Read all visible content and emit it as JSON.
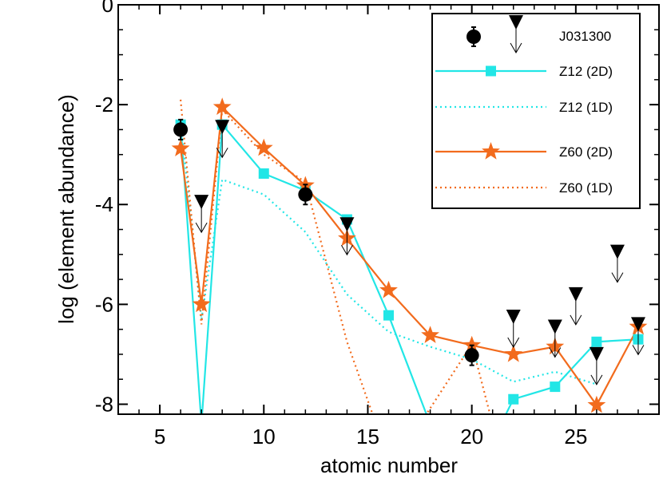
{
  "chart_data": {
    "type": "line",
    "title": "",
    "xlabel": "atomic number",
    "ylabel": "log (element abundance)",
    "xlim": [
      3,
      29
    ],
    "ylim": [
      -8.2,
      0
    ],
    "xticks": [
      5,
      10,
      15,
      20,
      25
    ],
    "yticks": [
      0,
      -2,
      -4,
      -6,
      -8
    ],
    "grid": false,
    "legend_position": "top-right",
    "detections": {
      "name": "J031300",
      "color": "#000000",
      "points": [
        {
          "x": 6,
          "y": -2.5,
          "err": 0.2
        },
        {
          "x": 12,
          "y": -3.8,
          "err": 0.2
        },
        {
          "x": 20,
          "y": -7.02,
          "err": 0.2
        }
      ]
    },
    "upper_limits": {
      "name": "J031300",
      "color": "#000000",
      "points": [
        {
          "x": 7,
          "y": -3.95
        },
        {
          "x": 8,
          "y": -2.45
        },
        {
          "x": 14,
          "y": -4.4
        },
        {
          "x": 22,
          "y": -6.25
        },
        {
          "x": 24,
          "y": -6.45
        },
        {
          "x": 25,
          "y": -5.8
        },
        {
          "x": 26,
          "y": -7.0
        },
        {
          "x": 27,
          "y": -4.95
        },
        {
          "x": 28,
          "y": -6.4
        }
      ]
    },
    "series": [
      {
        "name": "Z12 (2D)",
        "color": "#22e6e6",
        "style": "solid",
        "marker": "square",
        "points": [
          [
            6,
            -2.4
          ],
          [
            7,
            -8.4
          ],
          [
            8,
            -2.4
          ],
          [
            10,
            -3.38
          ],
          [
            12,
            -3.72
          ],
          [
            14,
            -4.3
          ],
          [
            16,
            -6.22
          ],
          [
            18,
            -8.4
          ]
        ],
        "points2": [
          [
            21.4,
            -8.4
          ],
          [
            22,
            -7.9
          ],
          [
            24,
            -7.65
          ],
          [
            26,
            -6.75
          ],
          [
            28,
            -6.7
          ]
        ]
      },
      {
        "name": "Z12 (1D)",
        "color": "#22e6e6",
        "style": "dotted",
        "marker": "none",
        "points": [
          [
            6,
            -2.3
          ],
          [
            7,
            -6.3
          ],
          [
            8,
            -3.5
          ],
          [
            10,
            -3.8
          ],
          [
            12,
            -4.55
          ],
          [
            14,
            -5.8
          ],
          [
            16,
            -6.55
          ],
          [
            18,
            -6.85
          ],
          [
            20,
            -7.1
          ],
          [
            22,
            -7.55
          ],
          [
            24,
            -7.35
          ],
          [
            26,
            -7.6
          ]
        ]
      },
      {
        "name": "Z60 (2D)",
        "color": "#f26b1d",
        "style": "solid",
        "marker": "star",
        "points": [
          [
            6,
            -2.88
          ],
          [
            7,
            -6.0
          ],
          [
            8,
            -2.05
          ],
          [
            10,
            -2.87
          ],
          [
            12,
            -3.62
          ],
          [
            14,
            -4.68
          ],
          [
            16,
            -5.72
          ],
          [
            18,
            -6.62
          ],
          [
            20,
            -6.82
          ],
          [
            22,
            -7.0
          ],
          [
            24,
            -6.85
          ],
          [
            26,
            -8.02
          ],
          [
            28,
            -6.45
          ]
        ]
      },
      {
        "name": "Z60 (1D)",
        "color": "#f26b1d",
        "style": "dotted",
        "marker": "none",
        "points": [
          [
            6,
            -1.9
          ],
          [
            7,
            -6.4
          ],
          [
            8,
            -2.1
          ],
          [
            10,
            -3.0
          ],
          [
            12,
            -3.55
          ],
          [
            14,
            -6.75
          ],
          [
            15.4,
            -8.4
          ]
        ],
        "points2": [
          [
            17.5,
            -8.4
          ],
          [
            20,
            -6.8
          ],
          [
            21,
            -8.4
          ]
        ]
      }
    ],
    "legend": [
      {
        "label": "J031300",
        "kind": "data"
      },
      {
        "label": "Z12 (2D)",
        "kind": "series",
        "index": 0
      },
      {
        "label": "Z12 (1D)",
        "kind": "series",
        "index": 1
      },
      {
        "label": "Z60 (2D)",
        "kind": "series",
        "index": 2
      },
      {
        "label": "Z60 (1D)",
        "kind": "series",
        "index": 3
      }
    ]
  }
}
